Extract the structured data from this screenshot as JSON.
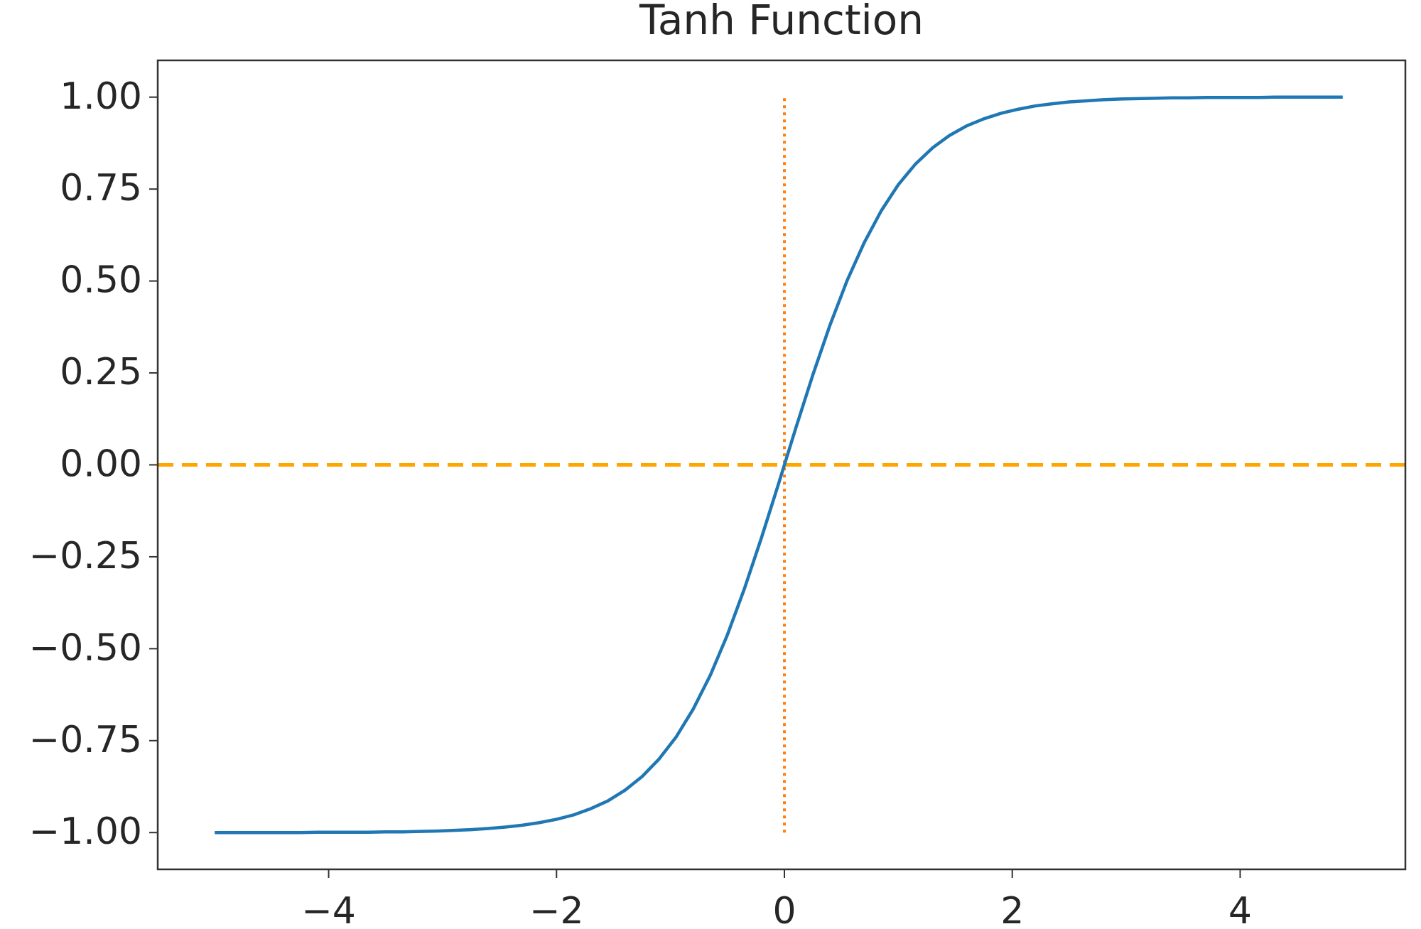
{
  "chart_data": {
    "type": "line",
    "title": "Tanh Function",
    "x": [
      -5.0,
      -4.85,
      -4.7,
      -4.55,
      -4.4,
      -4.25,
      -4.1,
      -3.95,
      -3.8,
      -3.65,
      -3.5,
      -3.35,
      -3.2,
      -3.05,
      -2.9,
      -2.75,
      -2.6,
      -2.45,
      -2.3,
      -2.15,
      -2.0,
      -1.85,
      -1.7,
      -1.55,
      -1.4,
      -1.25,
      -1.1,
      -0.95,
      -0.8,
      -0.65,
      -0.5,
      -0.35,
      -0.2,
      -0.05,
      0.1,
      0.25,
      0.4,
      0.55,
      0.7,
      0.85,
      1.0,
      1.15,
      1.3,
      1.45,
      1.6,
      1.75,
      1.9,
      2.05,
      2.2,
      2.35,
      2.5,
      2.65,
      2.8,
      2.95,
      3.1,
      3.25,
      3.4,
      3.55,
      3.7,
      3.85,
      4.0,
      4.15,
      4.3,
      4.45,
      4.6,
      4.75,
      4.9
    ],
    "values": [
      -1,
      -1,
      -1,
      -1,
      -1,
      -1,
      -0.999,
      -0.999,
      -0.999,
      -0.999,
      -0.998,
      -0.998,
      -0.997,
      -0.996,
      -0.994,
      -0.992,
      -0.989,
      -0.985,
      -0.98,
      -0.973,
      -0.964,
      -0.952,
      -0.935,
      -0.914,
      -0.885,
      -0.848,
      -0.8,
      -0.74,
      -0.664,
      -0.572,
      -0.462,
      -0.336,
      -0.197,
      -0.05,
      0.1,
      0.245,
      0.38,
      0.501,
      0.604,
      0.691,
      0.762,
      0.818,
      0.862,
      0.896,
      0.922,
      0.941,
      0.956,
      0.967,
      0.976,
      0.982,
      0.987,
      0.99,
      0.993,
      0.995,
      0.996,
      0.997,
      0.998,
      0.998,
      0.999,
      0.999,
      0.999,
      0.999,
      1,
      1,
      1,
      1,
      1
    ],
    "color": "#1f77b4",
    "xlim": [
      -5.5,
      5.45
    ],
    "ylim": [
      -1.1,
      1.1
    ],
    "xticks": [
      {
        "value": -4,
        "label": "−4"
      },
      {
        "value": -2,
        "label": "−2"
      },
      0,
      2,
      4
    ],
    "yticks": [
      {
        "value": -1,
        "label": "−1.00"
      },
      {
        "value": -0.75,
        "label": "−0.75"
      },
      {
        "value": -0.5,
        "label": "−0.50"
      },
      {
        "value": -0.25,
        "label": "−0.25"
      },
      {
        "value": 0,
        "label": "0.00"
      },
      {
        "value": 0.25,
        "label": "0.25"
      },
      {
        "value": 0.5,
        "label": "0.50"
      },
      {
        "value": 0.75,
        "label": "0.75"
      },
      {
        "value": 1,
        "label": "1.00"
      }
    ],
    "grid": false,
    "reference_lines": [
      {
        "orientation": "horizontal",
        "value": 0,
        "color": "#ffa500",
        "style": "dashed"
      },
      {
        "orientation": "vertical",
        "value": 0,
        "from": -1,
        "to": 1,
        "color": "#ff7f0e",
        "style": "dotted"
      }
    ]
  }
}
